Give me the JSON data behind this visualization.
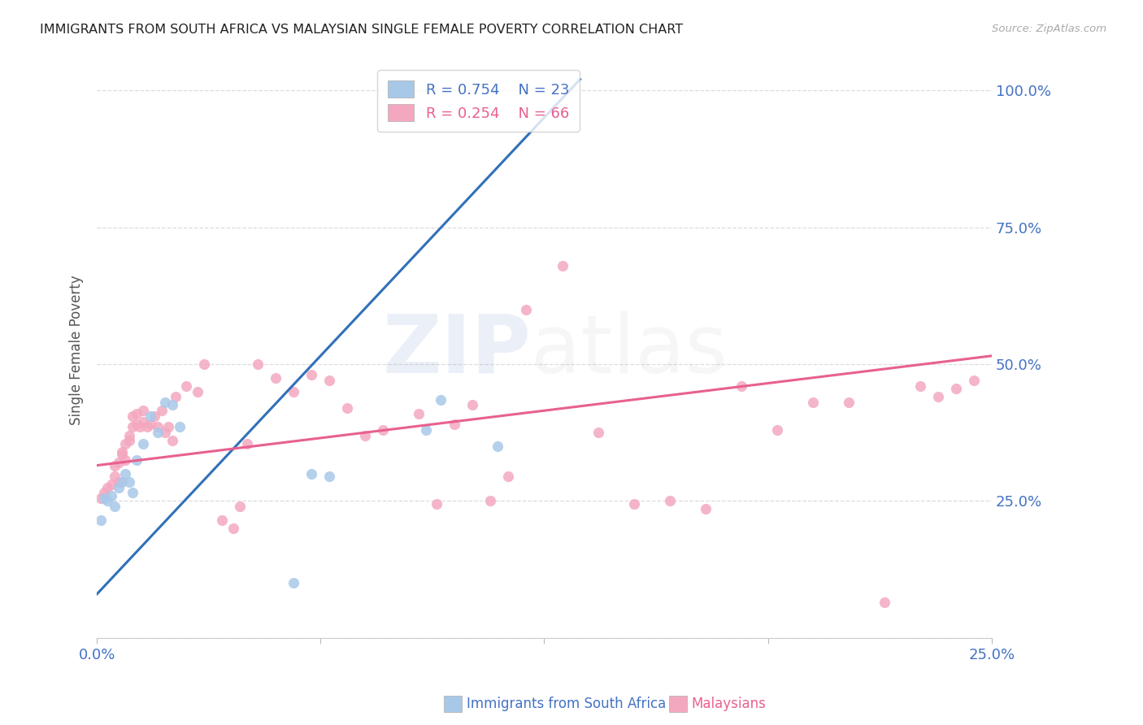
{
  "title": "IMMIGRANTS FROM SOUTH AFRICA VS MALAYSIAN SINGLE FEMALE POVERTY CORRELATION CHART",
  "source": "Source: ZipAtlas.com",
  "ylabel": "Single Female Poverty",
  "axis_color": "#4472c4",
  "title_color": "#222222",
  "source_color": "#aaaaaa",
  "blue_dot_color": "#a8c8e8",
  "pink_dot_color": "#f4a8c0",
  "blue_line_color": "#3070b8",
  "pink_line_color": "#e86090",
  "grid_color": "#dddddd",
  "background": "#ffffff",
  "blue_R": "0.754",
  "blue_N": "23",
  "pink_R": "0.254",
  "pink_N": "66",
  "xlim": [
    0.0,
    0.25
  ],
  "ylim": [
    0.0,
    1.05
  ],
  "ytick_vals": [
    0.0,
    0.25,
    0.5,
    0.75,
    1.0
  ],
  "ytick_labels": [
    "",
    "25.0%",
    "50.0%",
    "75.0%",
    "100.0%"
  ],
  "xtick_vals": [
    0.0,
    0.0625,
    0.125,
    0.1875,
    0.25
  ],
  "xtick_labels": [
    "0.0%",
    "",
    "",
    "",
    "25.0%"
  ],
  "blue_x": [
    0.001,
    0.002,
    0.003,
    0.004,
    0.005,
    0.006,
    0.007,
    0.008,
    0.009,
    0.01,
    0.011,
    0.013,
    0.015,
    0.017,
    0.019,
    0.021,
    0.023,
    0.06,
    0.065,
    0.092,
    0.096,
    0.112,
    0.055
  ],
  "blue_y": [
    0.215,
    0.255,
    0.25,
    0.26,
    0.24,
    0.275,
    0.285,
    0.3,
    0.285,
    0.265,
    0.325,
    0.355,
    0.405,
    0.375,
    0.43,
    0.425,
    0.385,
    0.3,
    0.295,
    0.38,
    0.435,
    0.35,
    0.1
  ],
  "pink_x": [
    0.001,
    0.002,
    0.003,
    0.004,
    0.005,
    0.005,
    0.006,
    0.006,
    0.007,
    0.007,
    0.008,
    0.008,
    0.009,
    0.009,
    0.01,
    0.01,
    0.011,
    0.011,
    0.012,
    0.013,
    0.013,
    0.014,
    0.015,
    0.016,
    0.017,
    0.018,
    0.019,
    0.02,
    0.021,
    0.022,
    0.025,
    0.028,
    0.03,
    0.035,
    0.038,
    0.04,
    0.042,
    0.045,
    0.05,
    0.055,
    0.06,
    0.065,
    0.07,
    0.075,
    0.08,
    0.09,
    0.095,
    0.1,
    0.105,
    0.11,
    0.115,
    0.12,
    0.13,
    0.14,
    0.15,
    0.16,
    0.17,
    0.18,
    0.19,
    0.2,
    0.21,
    0.22,
    0.23,
    0.235,
    0.24,
    0.245
  ],
  "pink_y": [
    0.255,
    0.265,
    0.275,
    0.28,
    0.295,
    0.315,
    0.285,
    0.32,
    0.335,
    0.34,
    0.355,
    0.325,
    0.36,
    0.37,
    0.385,
    0.405,
    0.39,
    0.41,
    0.385,
    0.395,
    0.415,
    0.385,
    0.39,
    0.405,
    0.385,
    0.415,
    0.375,
    0.385,
    0.36,
    0.44,
    0.46,
    0.45,
    0.5,
    0.215,
    0.2,
    0.24,
    0.355,
    0.5,
    0.475,
    0.45,
    0.48,
    0.47,
    0.42,
    0.37,
    0.38,
    0.41,
    0.245,
    0.39,
    0.425,
    0.25,
    0.295,
    0.6,
    0.68,
    0.375,
    0.245,
    0.25,
    0.235,
    0.46,
    0.38,
    0.43,
    0.43,
    0.065,
    0.46,
    0.44,
    0.455,
    0.47
  ],
  "blue_line_x": [
    0.0,
    0.135
  ],
  "blue_line_y": [
    0.08,
    1.02
  ],
  "pink_line_x": [
    0.0,
    0.25
  ],
  "pink_line_y": [
    0.315,
    0.515
  ]
}
